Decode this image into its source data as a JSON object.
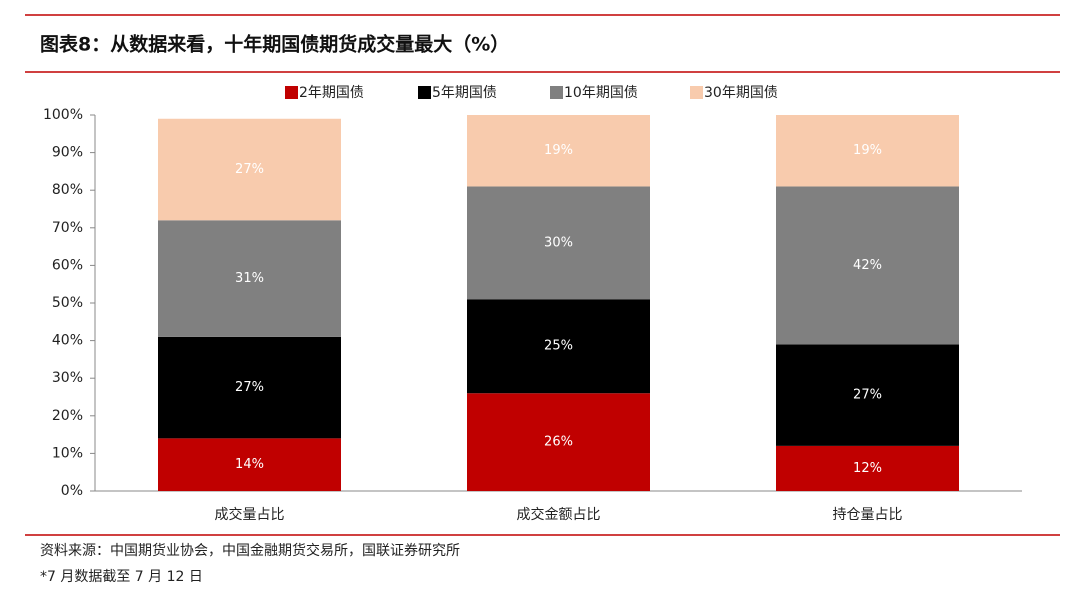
{
  "chart_data": {
    "type": "stacked-bar",
    "title": "图表8：从数据来看，十年期国债期货成交量最大（%）",
    "categories": [
      "成交量占比",
      "成交金额占比",
      "持仓量占比"
    ],
    "series": [
      {
        "name": "2年期国债",
        "color": "#c00000",
        "values": [
          14,
          26,
          12
        ],
        "value_labels": [
          "14%",
          "26%",
          "12%"
        ]
      },
      {
        "name": "5年期国债",
        "color": "#000000",
        "values": [
          27,
          25,
          27
        ],
        "value_labels": [
          "27%",
          "25%",
          "27%"
        ]
      },
      {
        "name": "10年期国债",
        "color": "#808080",
        "values": [
          31,
          30,
          42
        ],
        "value_labels": [
          "31%",
          "30%",
          "42%"
        ]
      },
      {
        "name": "30年期国债",
        "color": "#f8cbad",
        "values": [
          27,
          19,
          19
        ],
        "value_labels": [
          "27%",
          "19%",
          "19%"
        ]
      }
    ],
    "ylim": [
      0,
      100
    ],
    "yticks": [
      {
        "value": 0,
        "label": "0%"
      },
      {
        "value": 10,
        "label": "10%"
      },
      {
        "value": 20,
        "label": "20%"
      },
      {
        "value": 30,
        "label": "30%"
      },
      {
        "value": 40,
        "label": "40%"
      },
      {
        "value": 50,
        "label": "50%"
      },
      {
        "value": 60,
        "label": "60%"
      },
      {
        "value": 70,
        "label": "70%"
      },
      {
        "value": 80,
        "label": "80%"
      },
      {
        "value": 90,
        "label": "90%"
      },
      {
        "value": 100,
        "label": "100%"
      }
    ],
    "legend": "top",
    "source": "资料来源：中国期货业协会，中国金融期货交易所，国联证券研究所",
    "note": "*7 月数据截至 7 月 12 日"
  }
}
